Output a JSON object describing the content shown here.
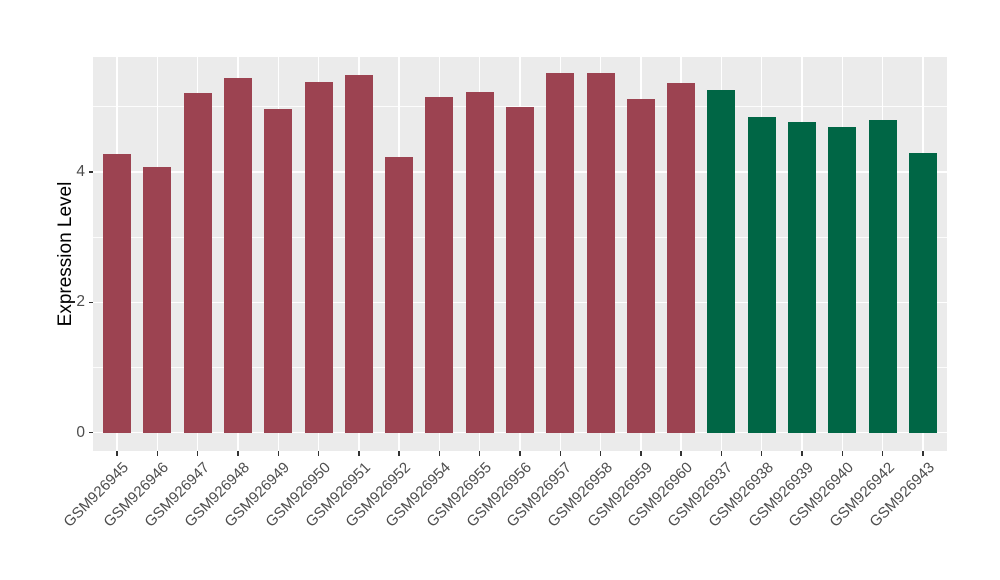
{
  "chart_data": {
    "type": "bar",
    "title": "",
    "xlabel": "",
    "ylabel": "Expression Level",
    "categories": [
      "GSM926945",
      "GSM926946",
      "GSM926947",
      "GSM926948",
      "GSM926949",
      "GSM926950",
      "GSM926951",
      "GSM926952",
      "GSM926954",
      "GSM926955",
      "GSM926956",
      "GSM926957",
      "GSM926958",
      "GSM926959",
      "GSM926960",
      "GSM926937",
      "GSM926938",
      "GSM926939",
      "GSM926940",
      "GSM926942",
      "GSM926943"
    ],
    "values": [
      4.28,
      4.07,
      5.21,
      5.44,
      4.97,
      5.37,
      5.48,
      4.23,
      5.14,
      5.23,
      5.0,
      5.51,
      5.51,
      5.11,
      5.36,
      5.25,
      4.84,
      4.76,
      4.69,
      4.79,
      4.29
    ],
    "bar_colors": [
      "#9C4351",
      "#9C4351",
      "#9C4351",
      "#9C4351",
      "#9C4351",
      "#9C4351",
      "#9C4351",
      "#9C4351",
      "#9C4351",
      "#9C4351",
      "#9C4351",
      "#9C4351",
      "#9C4351",
      "#9C4351",
      "#9C4351",
      "#006645",
      "#006645",
      "#006645",
      "#006645",
      "#006645",
      "#006645"
    ],
    "y_ticks": [
      0,
      2,
      4
    ],
    "y_tick_labels": [
      "0",
      "2",
      "4"
    ],
    "y_minor_ticks": [
      1,
      3,
      5
    ],
    "ylim": [
      -0.28,
      5.76
    ],
    "bar_width_fraction": 0.7,
    "grid": "major-and-minor",
    "legend_position": "none",
    "style": {
      "red_group_color": "#9C4351",
      "green_group_color": "#006645",
      "panel_background": "#EBEBEB",
      "grid_color": "#FFFFFF",
      "axis_text_color": "#4D4D4D",
      "axis_title_color": "#000000",
      "tick_mark_color": "#333333",
      "figure_background": "#FFFFFF"
    }
  }
}
